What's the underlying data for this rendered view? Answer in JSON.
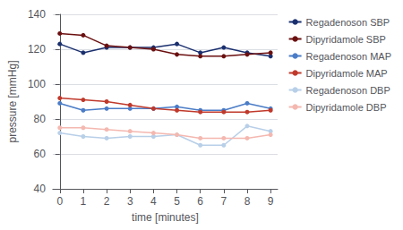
{
  "chart_data": {
    "type": "line",
    "xlabel": "time [minutes]",
    "ylabel": "pressure [mmHg]",
    "x": [
      0,
      1,
      2,
      3,
      4,
      5,
      6,
      7,
      8,
      9
    ],
    "series": [
      {
        "name": "Regadenoson SBP",
        "color": "#1a2f6e",
        "values": [
          123,
          118,
          121,
          121,
          121,
          123,
          118,
          121,
          118,
          116
        ]
      },
      {
        "name": "Dipyridamole SBP",
        "color": "#6b1010",
        "values": [
          129,
          128,
          122,
          121,
          120,
          117,
          116,
          116,
          117,
          118
        ]
      },
      {
        "name": "Regadenoson MAP",
        "color": "#4a7cc7",
        "values": [
          89,
          85,
          86,
          86,
          86,
          87,
          85,
          85,
          89,
          86
        ]
      },
      {
        "name": "Dipyridamole MAP",
        "color": "#c0392b",
        "values": [
          92,
          91,
          90,
          88,
          86,
          85,
          84,
          84,
          84,
          85
        ]
      },
      {
        "name": "Regadenoson DBP",
        "color": "#b8cfe8",
        "values": [
          72,
          70,
          69,
          70,
          70,
          71,
          65,
          65,
          76,
          73
        ]
      },
      {
        "name": "Dipyridamole DBP",
        "color": "#f4b8b0",
        "values": [
          75,
          75,
          74,
          73,
          72,
          71,
          69,
          69,
          69,
          71
        ]
      }
    ],
    "xlim": [
      -0.3,
      9.3
    ],
    "ylim": [
      40,
      140
    ],
    "xticks": [
      0,
      1,
      2,
      3,
      4,
      5,
      6,
      7,
      8,
      9
    ],
    "yticks": [
      40,
      60,
      80,
      100,
      120,
      140
    ],
    "grid": true,
    "legend": "right",
    "marker": "circle"
  }
}
